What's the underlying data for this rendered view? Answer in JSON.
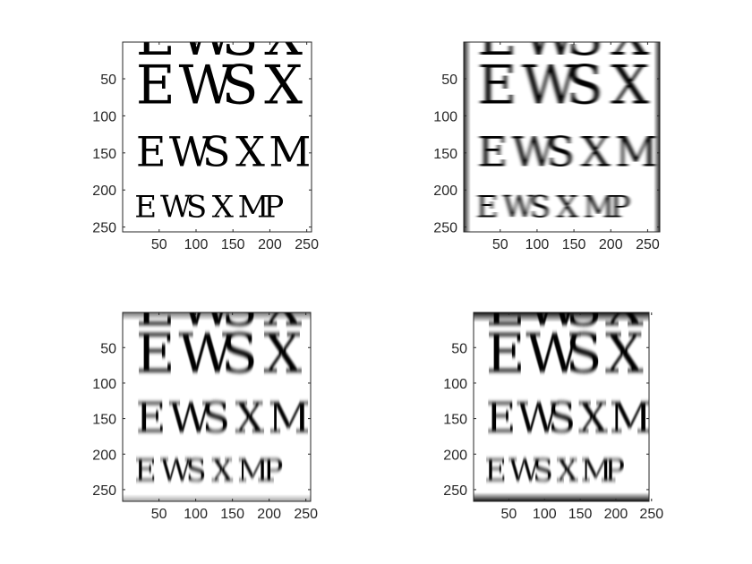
{
  "figure": {
    "panels": [
      {
        "name": "original",
        "image_columns": 256,
        "image_rows": 256,
        "xlim": [
          0.5,
          256.5
        ],
        "ylim": [
          0.5,
          256.5
        ],
        "blur": "none",
        "edge_artifacts": "none",
        "x_ticks": [
          50,
          100,
          150,
          200,
          250
        ],
        "y_ticks": [
          50,
          100,
          150,
          200,
          250
        ],
        "rows_of_letters": [
          {
            "letters": [
              "E",
              "W",
              "S",
              "X"
            ],
            "center_y": 57,
            "font_size": 60
          },
          {
            "letters": [
              "E",
              "W",
              "S",
              "X",
              "M"
            ],
            "center_y": 148,
            "font_size": 46
          },
          {
            "letters": [
              "E",
              "W",
              "S",
              "X",
              "M",
              "P"
            ],
            "center_y": 222,
            "font_size": 34
          }
        ]
      },
      {
        "name": "horizontal-motion-blur",
        "image_columns": 266,
        "image_rows": 256,
        "xlim": [
          0.5,
          266.5
        ],
        "ylim": [
          0.5,
          256.5
        ],
        "blur": "horizontal",
        "edge_artifacts": "left-right",
        "x_ticks": [
          50,
          100,
          150,
          200,
          250
        ],
        "y_ticks": [
          50,
          100,
          150,
          200,
          250
        ],
        "rows_of_letters": [
          {
            "letters": [
              "E",
              "W",
              "S",
              "X"
            ],
            "center_y": 57,
            "font_size": 60
          },
          {
            "letters": [
              "E",
              "W",
              "S",
              "X",
              "M"
            ],
            "center_y": 148,
            "font_size": 46
          },
          {
            "letters": [
              "E",
              "W",
              "S",
              "X",
              "M",
              "P"
            ],
            "center_y": 222,
            "font_size": 34
          }
        ]
      },
      {
        "name": "vertical-motion-blur",
        "image_columns": 256,
        "image_rows": 266,
        "xlim": [
          0.5,
          256.5
        ],
        "ylim": [
          0.5,
          266.5
        ],
        "blur": "vertical",
        "edge_artifacts": "top-bottom-light",
        "x_ticks": [
          50,
          100,
          150,
          200,
          250
        ],
        "y_ticks": [
          50,
          100,
          150,
          200,
          250
        ],
        "rows_of_letters": [
          {
            "letters": [
              "E",
              "W",
              "S",
              "X"
            ],
            "center_y": 57,
            "font_size": 60
          },
          {
            "letters": [
              "E",
              "W",
              "S",
              "X",
              "M"
            ],
            "center_y": 148,
            "font_size": 46
          },
          {
            "letters": [
              "E",
              "W",
              "S",
              "X",
              "M",
              "P"
            ],
            "center_y": 222,
            "font_size": 34
          }
        ]
      },
      {
        "name": "vertical-motion-blur-strong",
        "image_columns": 246,
        "image_rows": 266,
        "xlim": [
          0.5,
          246.5
        ],
        "ylim": [
          0.5,
          266.5
        ],
        "blur": "vertical",
        "edge_artifacts": "top-bottom-dark",
        "x_ticks": [
          50,
          100,
          150,
          200,
          250
        ],
        "y_ticks": [
          50,
          100,
          150,
          200,
          250
        ],
        "rows_of_letters": [
          {
            "letters": [
              "E",
              "W",
              "S",
              "X"
            ],
            "center_y": 57,
            "font_size": 60
          },
          {
            "letters": [
              "E",
              "W",
              "S",
              "X",
              "M"
            ],
            "center_y": 148,
            "font_size": 46
          },
          {
            "letters": [
              "E",
              "W",
              "S",
              "X",
              "M",
              "P"
            ],
            "center_y": 222,
            "font_size": 34
          }
        ]
      }
    ]
  }
}
